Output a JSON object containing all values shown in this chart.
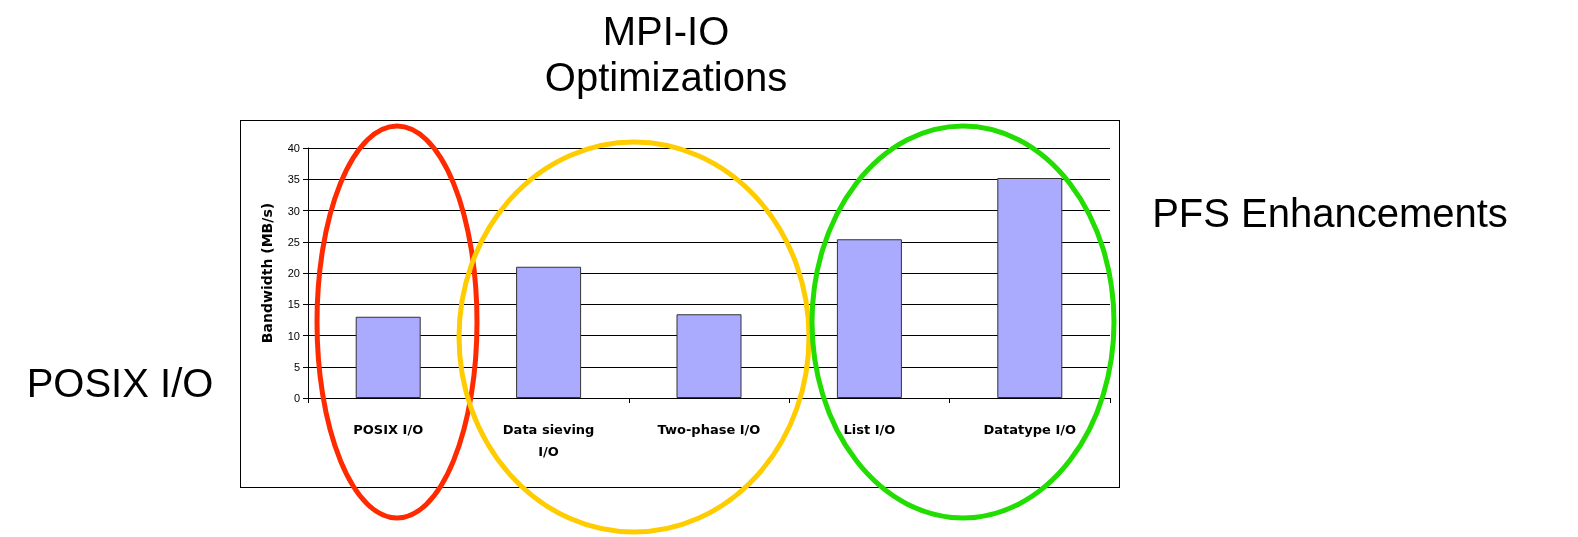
{
  "chart_data": {
    "type": "bar",
    "ylabel": "Bandwidth (MB/s)",
    "categories": [
      "POSIX I/O",
      "Data sieving\nI/O",
      "Two-phase I/O",
      "List I/O",
      "Datatype I/O"
    ],
    "values": [
      13,
      21,
      13.4,
      25.4,
      35.2
    ],
    "color": "#aaaaff",
    "ylim": [
      0,
      40
    ],
    "yticks": [
      0,
      5,
      10,
      15,
      20,
      25,
      30,
      35,
      40
    ],
    "grid": "y",
    "annotations": [
      "MPI-IO\nOptimizations",
      "PFS Enhancements",
      "POSIX I/O"
    ]
  }
}
